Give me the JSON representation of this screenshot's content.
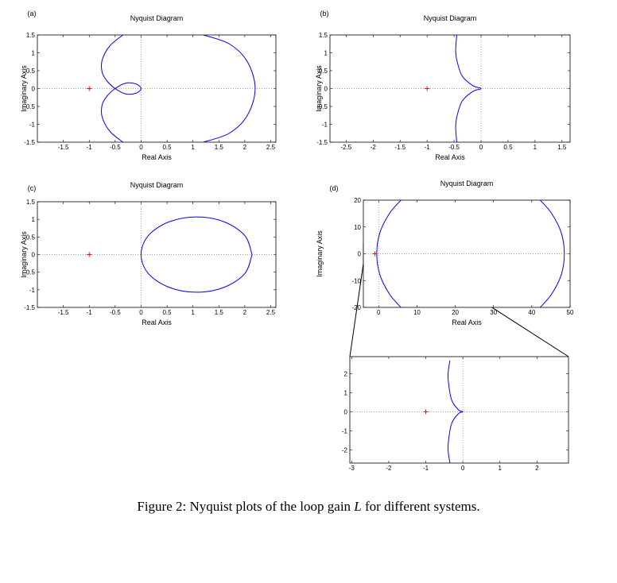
{
  "chart_data": [
    {
      "type": "line",
      "panel": "(a)",
      "title": "Nyquist Diagram",
      "x_label": "Real Axis",
      "y_label": "Imaginary Axis",
      "xlim": [
        -2,
        2.6
      ],
      "xticks": [
        -1.5,
        -1,
        -0.5,
        0,
        0.5,
        1,
        1.5,
        2,
        2.5
      ],
      "ylim": [
        -1.5,
        1.5
      ],
      "yticks": [
        -1.5,
        -1,
        -0.5,
        0,
        0.5,
        1,
        1.5
      ],
      "series": [
        {
          "color": "#0000ff",
          "x": [
            -0.35,
            -0.6,
            -0.75,
            -0.75,
            -0.65,
            -0.5,
            -0.3,
            -0.1,
            0,
            -0.1,
            -0.3,
            -0.5,
            -0.65,
            -0.75,
            -0.75,
            -0.6,
            -0.35,
            null,
            1.2,
            1.7,
            2.05,
            2.2,
            2.05,
            1.7,
            1.2
          ],
          "y": [
            1.5,
            1.2,
            0.8,
            0.45,
            0.2,
            0,
            -0.15,
            -0.13,
            0,
            0.13,
            0.15,
            0,
            -0.2,
            -0.45,
            -0.8,
            -1.2,
            -1.5,
            null,
            1.5,
            1.25,
            0.75,
            0,
            -0.75,
            -1.25,
            -1.5
          ]
        }
      ],
      "marker": {
        "color": "#ff0000",
        "x": [
          -1
        ],
        "y": [
          0
        ]
      }
    },
    {
      "type": "line",
      "panel": "(b)",
      "title": "Nyquist Diagram",
      "x_label": "Real Axis",
      "y_label": "Imaginary Axis",
      "xlim": [
        -2.8,
        1.65
      ],
      "xticks": [
        -2.5,
        -2,
        -1.5,
        -1,
        -0.5,
        0,
        0.5,
        1,
        1.5
      ],
      "ylim": [
        -1.5,
        1.5
      ],
      "yticks": [
        -1.5,
        -1,
        -0.5,
        0,
        0.5,
        1,
        1.5
      ],
      "series": [
        {
          "color": "#0000ff",
          "x": [
            -0.45,
            -0.47,
            -0.45,
            -0.35,
            -0.15,
            0,
            -0.15,
            -0.35,
            -0.45,
            -0.47,
            -0.45
          ],
          "y": [
            1.5,
            1.1,
            0.8,
            0.35,
            0.08,
            0,
            -0.08,
            -0.35,
            -0.8,
            -1.1,
            -1.5
          ]
        }
      ],
      "marker": {
        "color": "#ff0000",
        "x": [
          -1
        ],
        "y": [
          0
        ]
      }
    },
    {
      "type": "line",
      "panel": "(c)",
      "title": "Nyquist Diagram",
      "x_label": "Real Axis",
      "y_label": "Imaginary Axis",
      "xlim": [
        -2,
        2.6
      ],
      "xticks": [
        -1.5,
        -1,
        -0.5,
        0,
        0.5,
        1,
        1.5,
        2,
        2.5
      ],
      "ylim": [
        -1.5,
        1.5
      ],
      "yticks": [
        -1.5,
        -1,
        -0.5,
        0,
        0.5,
        1,
        1.5
      ],
      "series": [
        {
          "color": "#0000ff",
          "x": [
            2.14,
            2.0,
            1.6,
            1.07,
            0.54,
            0.14,
            0,
            0.14,
            0.54,
            1.07,
            1.6,
            2.0,
            2.14
          ],
          "y": [
            0,
            0.54,
            0.93,
            1.07,
            0.93,
            0.54,
            0,
            -0.54,
            -0.93,
            -1.07,
            -0.93,
            -0.54,
            0
          ]
        }
      ],
      "marker": {
        "color": "#ff0000",
        "x": [
          -1
        ],
        "y": [
          0
        ]
      }
    },
    {
      "type": "line",
      "panel": "(d)",
      "title": "Nyquist Diagram",
      "x_label": "Real Axis",
      "y_label": "Imaginary Axis",
      "xlim": [
        -4,
        50
      ],
      "xticks": [
        0,
        10,
        20,
        30,
        40,
        50
      ],
      "ylim": [
        -20,
        20
      ],
      "yticks": [
        -20,
        -10,
        0,
        10,
        20
      ],
      "series": [
        {
          "color": "#0000ff",
          "x": [
            5.8,
            2.8,
            0.3,
            -0.5,
            0.3,
            2.8,
            5.8,
            null,
            42.2,
            45.2,
            47.7,
            48.5,
            47.7,
            45.2,
            42.2
          ],
          "y": [
            20,
            15,
            7.8,
            0,
            -7.8,
            -15,
            -20,
            null,
            20,
            15,
            7.8,
            0,
            -7.8,
            -15,
            -20
          ]
        }
      ],
      "marker": {
        "color": "#ff0000",
        "x": [
          -1
        ],
        "y": [
          0
        ]
      }
    },
    {
      "type": "line",
      "xlim": [
        -3.05,
        2.85
      ],
      "xticks": [
        -3,
        -2,
        -1,
        0,
        1,
        2
      ],
      "ylim": [
        -2.7,
        2.9
      ],
      "yticks": [
        -2,
        -1,
        0,
        1,
        2
      ],
      "series": [
        {
          "color": "#0000ff",
          "x": [
            -0.35,
            -0.4,
            -0.38,
            -0.3,
            -0.12,
            0,
            -0.12,
            -0.3,
            -0.38,
            -0.4,
            -0.35
          ],
          "y": [
            2.7,
            2.0,
            1.4,
            0.6,
            0.1,
            0,
            -0.1,
            -0.6,
            -1.4,
            -2.0,
            -2.7
          ]
        }
      ],
      "marker": {
        "color": "#ff0000",
        "x": [
          -1
        ],
        "y": [
          0
        ]
      }
    }
  ],
  "caption": {
    "label": "Figure 2:",
    "before": "Nyquist plots of the loop gain",
    "symbol": "L",
    "after": "for different systems."
  }
}
